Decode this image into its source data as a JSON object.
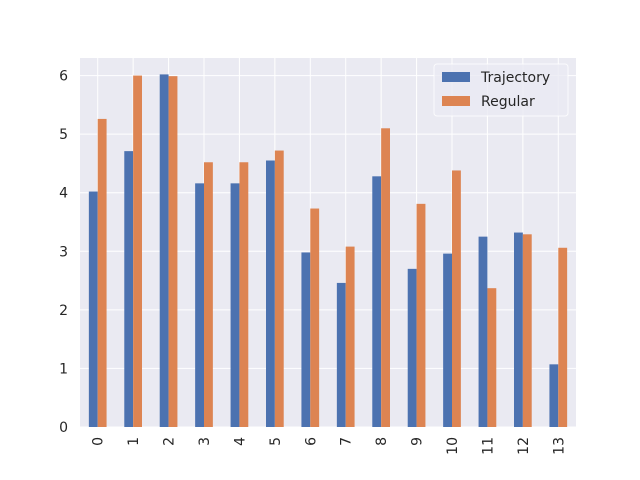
{
  "chart_data": {
    "type": "bar",
    "title": "",
    "xlabel": "",
    "ylabel": "",
    "categories": [
      "0",
      "1",
      "2",
      "3",
      "4",
      "5",
      "6",
      "7",
      "8",
      "9",
      "10",
      "11",
      "12",
      "13"
    ],
    "series": [
      {
        "name": "Trajectory",
        "color": "#4c72b0",
        "values": [
          4.02,
          4.71,
          6.02,
          4.16,
          4.16,
          4.55,
          2.98,
          2.46,
          4.28,
          2.7,
          2.96,
          3.25,
          3.32,
          1.07
        ]
      },
      {
        "name": "Regular",
        "color": "#dd8452",
        "values": [
          5.26,
          6.0,
          5.99,
          4.52,
          4.52,
          4.72,
          3.73,
          3.08,
          5.1,
          3.81,
          4.38,
          2.37,
          3.29,
          3.06
        ]
      }
    ],
    "ylim": [
      0,
      6.3
    ],
    "yticks": [
      0,
      1,
      2,
      3,
      4,
      5,
      6
    ],
    "grid": true,
    "legend_position": "top-right",
    "background": "#eaeaf2"
  }
}
